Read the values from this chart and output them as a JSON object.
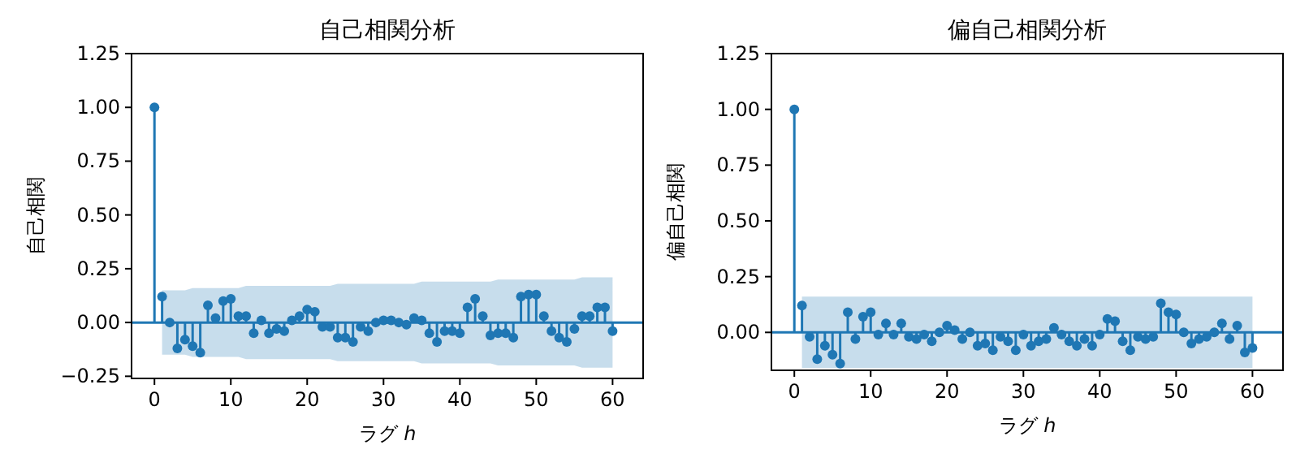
{
  "chart_data": [
    {
      "type": "lollipop",
      "title": "自己相関分析",
      "xlabel": "ラグ *h*",
      "ylabel": "自己相関",
      "marker": "circle",
      "xlim": [
        -3,
        64
      ],
      "ylim": [
        -0.26,
        1.25
      ],
      "xticks": [
        0,
        10,
        20,
        30,
        40,
        50,
        60
      ],
      "yticks": [
        {
          "value": -0.25,
          "label": "−0.25"
        },
        {
          "value": 0,
          "label": "0.00"
        },
        {
          "value": 0.25,
          "label": "0.25"
        },
        {
          "value": 0.5,
          "label": "0.50"
        },
        {
          "value": 0.75,
          "label": "0.75"
        },
        {
          "value": 1,
          "label": "1.00"
        },
        {
          "value": 1.25,
          "label": "1.25"
        }
      ],
      "x": [
        0,
        1,
        2,
        3,
        4,
        5,
        6,
        7,
        8,
        9,
        10,
        11,
        12,
        13,
        14,
        15,
        16,
        17,
        18,
        19,
        20,
        21,
        22,
        23,
        24,
        25,
        26,
        27,
        28,
        29,
        30,
        31,
        32,
        33,
        34,
        35,
        36,
        37,
        38,
        39,
        40,
        41,
        42,
        43,
        44,
        45,
        46,
        47,
        48,
        49,
        50,
        51,
        52,
        53,
        54,
        55,
        56,
        57,
        58,
        59,
        60
      ],
      "ref_lines": [
        {
          "axis": "y",
          "value": 0
        }
      ],
      "series": [
        {
          "color": "#1f77b4",
          "values": [
            1,
            0.12,
            0.0,
            -0.12,
            -0.08,
            -0.11,
            -0.14,
            0.08,
            0.02,
            0.1,
            0.11,
            0.03,
            0.03,
            -0.05,
            0.01,
            -0.05,
            -0.03,
            -0.04,
            0.01,
            0.03,
            0.06,
            0.05,
            -0.02,
            -0.02,
            -0.07,
            -0.07,
            -0.09,
            -0.02,
            -0.04,
            0.0,
            0.01,
            0.01,
            0.0,
            -0.01,
            0.02,
            0.01,
            -0.05,
            -0.09,
            -0.04,
            -0.04,
            -0.05,
            0.07,
            0.11,
            0.03,
            -0.06,
            -0.05,
            -0.05,
            -0.07,
            0.12,
            0.13,
            0.13,
            0.03,
            -0.04,
            -0.07,
            -0.09,
            -0.03,
            0.03,
            0.03,
            0.07,
            0.07,
            -0.04
          ],
          "lower": [
            null,
            -0.15,
            -0.15,
            -0.15,
            -0.15,
            -0.16,
            -0.16,
            -0.16,
            -0.16,
            -0.16,
            -0.16,
            -0.16,
            -0.17,
            -0.17,
            -0.17,
            -0.17,
            -0.17,
            -0.17,
            -0.17,
            -0.17,
            -0.17,
            -0.17,
            -0.17,
            -0.17,
            -0.18,
            -0.18,
            -0.18,
            -0.18,
            -0.18,
            -0.18,
            -0.18,
            -0.18,
            -0.18,
            -0.18,
            -0.18,
            -0.19,
            -0.19,
            -0.19,
            -0.19,
            -0.19,
            -0.19,
            -0.19,
            -0.19,
            -0.19,
            -0.19,
            -0.2,
            -0.2,
            -0.2,
            -0.2,
            -0.2,
            -0.2,
            -0.2,
            -0.2,
            -0.2,
            -0.2,
            -0.2,
            -0.21,
            -0.21,
            -0.21,
            -0.21,
            -0.21
          ],
          "upper": [
            null,
            0.15,
            0.15,
            0.15,
            0.15,
            0.16,
            0.16,
            0.16,
            0.16,
            0.16,
            0.16,
            0.16,
            0.17,
            0.17,
            0.17,
            0.17,
            0.17,
            0.17,
            0.17,
            0.17,
            0.17,
            0.17,
            0.17,
            0.17,
            0.18,
            0.18,
            0.18,
            0.18,
            0.18,
            0.18,
            0.18,
            0.18,
            0.18,
            0.18,
            0.18,
            0.19,
            0.19,
            0.19,
            0.19,
            0.19,
            0.19,
            0.19,
            0.19,
            0.19,
            0.19,
            0.2,
            0.2,
            0.2,
            0.2,
            0.2,
            0.2,
            0.2,
            0.2,
            0.2,
            0.2,
            0.2,
            0.21,
            0.21,
            0.21,
            0.21,
            0.21
          ]
        }
      ]
    },
    {
      "type": "lollipop",
      "title": "偏自己相関分析",
      "xlabel": "ラグ *h*",
      "ylabel": "偏自己相関",
      "marker": "circle",
      "xlim": [
        -3,
        64
      ],
      "ylim": [
        -0.17,
        1.25
      ],
      "xticks": [
        0,
        10,
        20,
        30,
        40,
        50,
        60
      ],
      "yticks": [
        {
          "value": 0,
          "label": "0.00"
        },
        {
          "value": 0.25,
          "label": "0.25"
        },
        {
          "value": 0.5,
          "label": "0.50"
        },
        {
          "value": 0.75,
          "label": "0.75"
        },
        {
          "value": 1,
          "label": "1.00"
        },
        {
          "value": 1.25,
          "label": "1.25"
        }
      ],
      "x": [
        0,
        1,
        2,
        3,
        4,
        5,
        6,
        7,
        8,
        9,
        10,
        11,
        12,
        13,
        14,
        15,
        16,
        17,
        18,
        19,
        20,
        21,
        22,
        23,
        24,
        25,
        26,
        27,
        28,
        29,
        30,
        31,
        32,
        33,
        34,
        35,
        36,
        37,
        38,
        39,
        40,
        41,
        42,
        43,
        44,
        45,
        46,
        47,
        48,
        49,
        50,
        51,
        52,
        53,
        54,
        55,
        56,
        57,
        58,
        59,
        60
      ],
      "ref_lines": [
        {
          "axis": "y",
          "value": 0
        }
      ],
      "series": [
        {
          "color": "#1f77b4",
          "values": [
            1,
            0.12,
            -0.02,
            -0.12,
            -0.06,
            -0.1,
            -0.14,
            0.09,
            -0.03,
            0.07,
            0.09,
            -0.01,
            0.04,
            -0.01,
            0.04,
            -0.02,
            -0.03,
            -0.01,
            -0.04,
            0.0,
            0.03,
            0.01,
            -0.03,
            0.0,
            -0.06,
            -0.05,
            -0.08,
            -0.02,
            -0.04,
            -0.08,
            -0.01,
            -0.06,
            -0.04,
            -0.03,
            0.02,
            -0.01,
            -0.04,
            -0.06,
            -0.03,
            -0.06,
            -0.01,
            0.06,
            0.05,
            -0.04,
            -0.08,
            -0.02,
            -0.03,
            -0.02,
            0.13,
            0.09,
            0.08,
            0.0,
            -0.05,
            -0.03,
            -0.02,
            0.0,
            0.04,
            -0.03,
            0.03,
            -0.09,
            -0.07
          ],
          "lower": [
            null,
            -0.16,
            -0.16,
            -0.16,
            -0.16,
            -0.16,
            -0.16,
            -0.16,
            -0.16,
            -0.16,
            -0.16,
            -0.16,
            -0.16,
            -0.16,
            -0.16,
            -0.16,
            -0.16,
            -0.16,
            -0.16,
            -0.16,
            -0.16,
            -0.16,
            -0.16,
            -0.16,
            -0.16,
            -0.16,
            -0.16,
            -0.16,
            -0.16,
            -0.16,
            -0.16,
            -0.16,
            -0.16,
            -0.16,
            -0.16,
            -0.16,
            -0.16,
            -0.16,
            -0.16,
            -0.16,
            -0.16,
            -0.16,
            -0.16,
            -0.16,
            -0.16,
            -0.16,
            -0.16,
            -0.16,
            -0.16,
            -0.16,
            -0.16,
            -0.16,
            -0.16,
            -0.16,
            -0.16,
            -0.16,
            -0.16,
            -0.16,
            -0.16,
            -0.16,
            -0.16
          ],
          "upper": [
            null,
            0.16,
            0.16,
            0.16,
            0.16,
            0.16,
            0.16,
            0.16,
            0.16,
            0.16,
            0.16,
            0.16,
            0.16,
            0.16,
            0.16,
            0.16,
            0.16,
            0.16,
            0.16,
            0.16,
            0.16,
            0.16,
            0.16,
            0.16,
            0.16,
            0.16,
            0.16,
            0.16,
            0.16,
            0.16,
            0.16,
            0.16,
            0.16,
            0.16,
            0.16,
            0.16,
            0.16,
            0.16,
            0.16,
            0.16,
            0.16,
            0.16,
            0.16,
            0.16,
            0.16,
            0.16,
            0.16,
            0.16,
            0.16,
            0.16,
            0.16,
            0.16,
            0.16,
            0.16,
            0.16,
            0.16,
            0.16,
            0.16,
            0.16,
            0.16,
            0.16
          ]
        }
      ]
    }
  ]
}
